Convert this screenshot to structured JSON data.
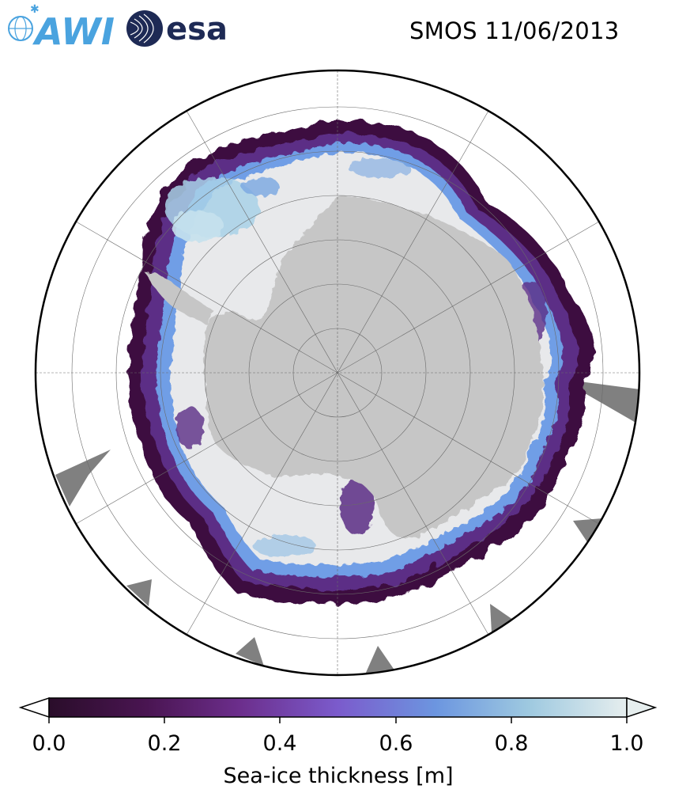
{
  "header": {
    "title": "SMOS 11/06/2013",
    "logo_awi": "AWI",
    "logo_esa": "esa"
  },
  "map": {
    "projection": "south-polar-stereographic",
    "colors": {
      "land": "#c6c6c6",
      "no_data": "#808080",
      "ocean": "#ffffff",
      "thick_ice": "#e6e8ea",
      "thin_ice_edge": "#3d0f40"
    }
  },
  "colorbar": {
    "label": "Sea-ice thickness [m]",
    "ticks": [
      "0.0",
      "0.2",
      "0.4",
      "0.6",
      "0.8",
      "1.0"
    ],
    "range": [
      0.0,
      1.0
    ],
    "extend": "both",
    "colors": [
      "#2a0d2a",
      "#4a1552",
      "#6c2e8c",
      "#7b5bcc",
      "#6c96e0",
      "#9ec9e0",
      "#e6eeee"
    ]
  },
  "logo_colors": {
    "awi": "#4aa3df",
    "esa": "#1e2a55"
  }
}
